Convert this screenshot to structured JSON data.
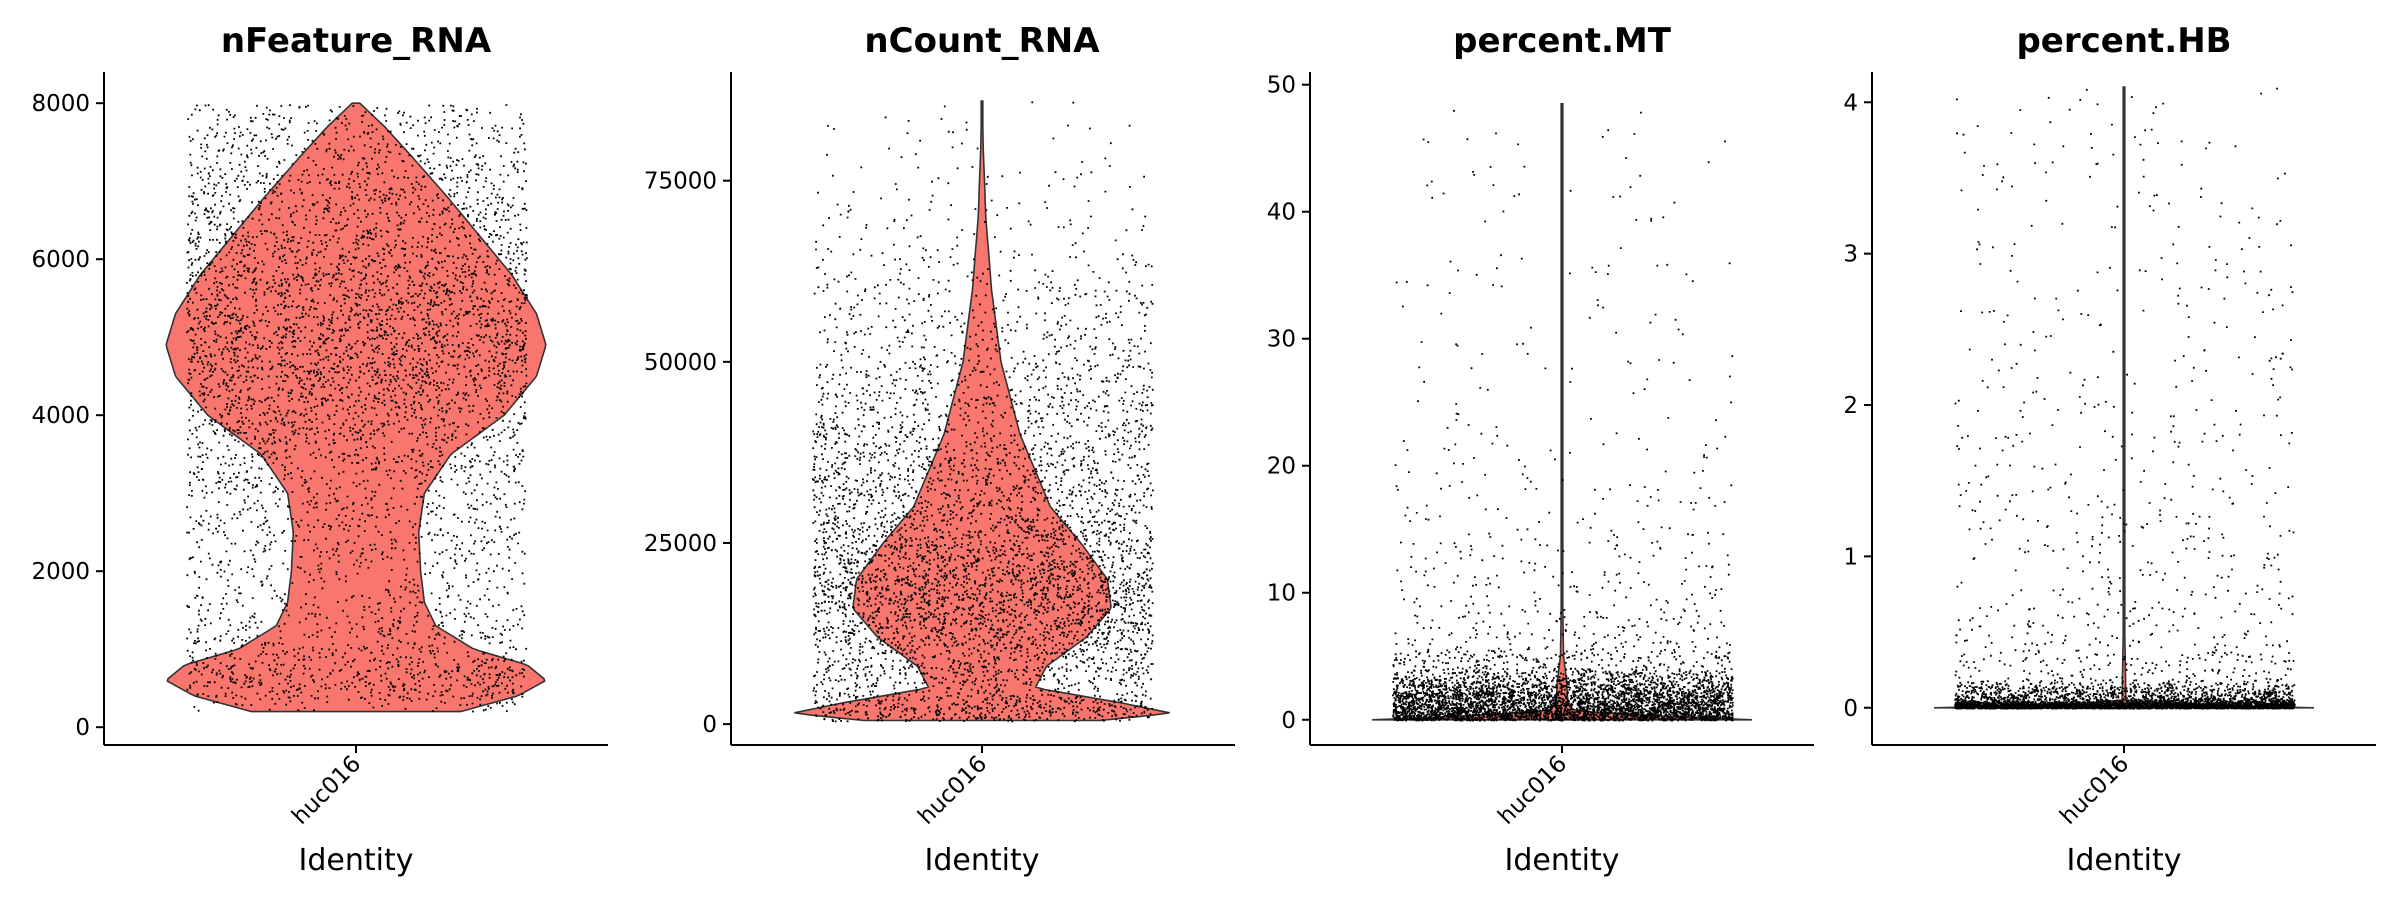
{
  "figure": {
    "violin_color": "#F8766D",
    "violin_stroke": "#333333",
    "point_color": "#000000"
  },
  "chart_data": [
    {
      "type": "violin",
      "title": "nFeature_RNA",
      "xlabel": "Identity",
      "ylabel": "",
      "categories": [
        "huc016"
      ],
      "ylim": [
        -100,
        8400
      ],
      "yticks": [
        0,
        2000,
        4000,
        6000,
        8000
      ],
      "ytick_labels": [
        "0",
        "2000",
        "4000",
        "6000",
        "8000"
      ],
      "range": [
        200,
        8000
      ],
      "density_profile": [
        [
          200,
          0.55
        ],
        [
          400,
          0.85
        ],
        [
          600,
          1.0
        ],
        [
          800,
          0.9
        ],
        [
          1000,
          0.62
        ],
        [
          1300,
          0.42
        ],
        [
          1600,
          0.36
        ],
        [
          2000,
          0.34
        ],
        [
          2500,
          0.33
        ],
        [
          3000,
          0.36
        ],
        [
          3500,
          0.5
        ],
        [
          4000,
          0.78
        ],
        [
          4500,
          0.95
        ],
        [
          4900,
          1.0
        ],
        [
          5300,
          0.95
        ],
        [
          5800,
          0.82
        ],
        [
          6300,
          0.65
        ],
        [
          6800,
          0.48
        ],
        [
          7300,
          0.3
        ],
        [
          7700,
          0.15
        ],
        [
          8000,
          0.02
        ]
      ],
      "point_distribution": [
        [
          200,
          0.02
        ],
        [
          500,
          0.12
        ],
        [
          800,
          0.08
        ],
        [
          1500,
          0.04
        ],
        [
          3000,
          0.05
        ],
        [
          4000,
          0.1
        ],
        [
          5000,
          0.14
        ],
        [
          6000,
          0.1
        ],
        [
          7000,
          0.07
        ],
        [
          8000,
          0.05
        ]
      ]
    },
    {
      "type": "violin",
      "title": "nCount_RNA",
      "xlabel": "Identity",
      "ylabel": "",
      "categories": [
        "huc016"
      ],
      "ylim": [
        -1500,
        90000
      ],
      "yticks": [
        0,
        25000,
        50000,
        75000
      ],
      "ytick_labels": [
        "0",
        "25000",
        "50000",
        "75000"
      ],
      "range": [
        500,
        86000
      ],
      "density_profile": [
        [
          500,
          0.62
        ],
        [
          1500,
          1.0
        ],
        [
          3000,
          0.72
        ],
        [
          5000,
          0.28
        ],
        [
          8000,
          0.34
        ],
        [
          12000,
          0.55
        ],
        [
          16000,
          0.68
        ],
        [
          20000,
          0.66
        ],
        [
          25000,
          0.52
        ],
        [
          30000,
          0.36
        ],
        [
          40000,
          0.2
        ],
        [
          50000,
          0.1
        ],
        [
          60000,
          0.05
        ],
        [
          70000,
          0.02
        ],
        [
          80000,
          0.006
        ],
        [
          86000,
          0.002
        ]
      ],
      "point_distribution": [
        [
          500,
          0.1
        ],
        [
          2000,
          0.15
        ],
        [
          5000,
          0.07
        ],
        [
          10000,
          0.1
        ],
        [
          18000,
          0.14
        ],
        [
          25000,
          0.1
        ],
        [
          35000,
          0.07
        ],
        [
          45000,
          0.05
        ],
        [
          55000,
          0.03
        ],
        [
          65000,
          0.015
        ],
        [
          75000,
          0.006
        ],
        [
          86000,
          0.002
        ]
      ]
    },
    {
      "type": "violin",
      "title": "percent.MT",
      "xlabel": "Identity",
      "ylabel": "",
      "categories": [
        "huc016"
      ],
      "ylim": [
        -1.2,
        51
      ],
      "yticks": [
        0,
        10,
        20,
        30,
        40,
        50
      ],
      "ytick_labels": [
        "0",
        "10",
        "20",
        "30",
        "40",
        "50"
      ],
      "range": [
        0,
        48.5
      ],
      "density_profile": [
        [
          0,
          1.0
        ],
        [
          0.3,
          0.5
        ],
        [
          0.7,
          0.06
        ],
        [
          1.5,
          0.03
        ],
        [
          3,
          0.025
        ],
        [
          5,
          0.008
        ],
        [
          10,
          0.003
        ],
        [
          20,
          0.002
        ],
        [
          48.5,
          0.001
        ]
      ],
      "point_distribution": [
        [
          0,
          0.6
        ],
        [
          1,
          0.35
        ],
        [
          2,
          0.3
        ],
        [
          3,
          0.15
        ],
        [
          4,
          0.05
        ],
        [
          6,
          0.015
        ],
        [
          10,
          0.006
        ],
        [
          20,
          0.002
        ],
        [
          30,
          0.001
        ],
        [
          48,
          0.0005
        ]
      ]
    },
    {
      "type": "violin",
      "title": "percent.HB",
      "xlabel": "Identity",
      "ylabel": "",
      "categories": [
        "huc016"
      ],
      "ylim": [
        -0.18,
        4.2
      ],
      "yticks": [
        0,
        1,
        2,
        3,
        4
      ],
      "ytick_labels": [
        "0",
        "1",
        "2",
        "3",
        "4"
      ],
      "range": [
        0,
        4.1
      ],
      "density_profile": [
        [
          0,
          1.0
        ],
        [
          0.02,
          0.3
        ],
        [
          0.05,
          0.01
        ],
        [
          0.5,
          0.004
        ],
        [
          1,
          0.003
        ],
        [
          2,
          0.002
        ],
        [
          4.1,
          0.001
        ]
      ],
      "point_distribution": [
        [
          0,
          1.0
        ],
        [
          0.05,
          0.1
        ],
        [
          0.2,
          0.008
        ],
        [
          0.5,
          0.003
        ],
        [
          1,
          0.002
        ],
        [
          2,
          0.001
        ],
        [
          4,
          0.0005
        ]
      ]
    }
  ]
}
